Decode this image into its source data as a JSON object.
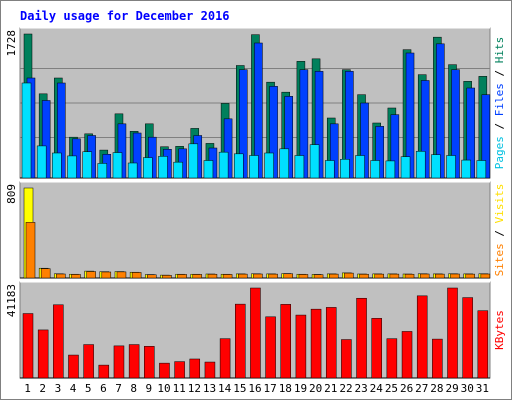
{
  "chart_data": {
    "type": "bar",
    "title": "Daily usage for December 2016",
    "days": [
      "1",
      "2",
      "3",
      "4",
      "5",
      "6",
      "7",
      "8",
      "9",
      "10",
      "11",
      "12",
      "13",
      "14",
      "15",
      "16",
      "17",
      "18",
      "19",
      "20",
      "21",
      "22",
      "23",
      "24",
      "25",
      "26",
      "27",
      "28",
      "29",
      "30",
      "31"
    ],
    "weekend_days": [
      "3",
      "4",
      "10",
      "11",
      "17",
      "18",
      "24",
      "25",
      "31"
    ],
    "colors": {
      "title": "#0000ff",
      "background": "#ffffff",
      "plot_bg": "#c0c0c0",
      "frame": "#808080",
      "gridline": "#808080",
      "hits": "#00805c",
      "files": "#0040ff",
      "pages": "#00e0ff",
      "sites": "#ff8000",
      "visits": "#ffff00",
      "kbytes": "#ff0000",
      "weekend_label": "#00805c",
      "weekday_label": "#000000"
    },
    "panels": [
      {
        "name": "hits-files-pages",
        "max_label": "1728",
        "ymax": 1728,
        "legend": [
          {
            "text": "Pages",
            "color": "#00c0e0"
          },
          {
            "text": " / ",
            "color": "#000000"
          },
          {
            "text": "Files",
            "color": "#0040ff"
          },
          {
            "text": " / ",
            "color": "#000000"
          },
          {
            "text": "Hits",
            "color": "#00805c"
          }
        ],
        "series": [
          {
            "name": "Hits",
            "color": "#00805c",
            "values": [
              1728,
              1010,
              1200,
              490,
              530,
              335,
              770,
              560,
              650,
              375,
              380,
              595,
              415,
              895,
              1350,
              1720,
              1150,
              1030,
              1400,
              1430,
              720,
              1300,
              1000,
              660,
              840,
              1540,
              1240,
              1690,
              1360,
              1160,
              1220
            ]
          },
          {
            "name": "Files",
            "color": "#0040ff",
            "values": [
              1200,
              930,
              1140,
              470,
              510,
              285,
              650,
              540,
              490,
              345,
              350,
              510,
              360,
              710,
              1300,
              1620,
              1100,
              980,
              1300,
              1280,
              650,
              1280,
              900,
              620,
              760,
              1500,
              1170,
              1610,
              1300,
              1080,
              1000
            ]
          },
          {
            "name": "Pages",
            "color": "#00e0ff",
            "values": [
              1140,
              385,
              300,
              265,
              315,
              175,
              305,
              180,
              245,
              260,
              190,
              410,
              210,
              310,
              290,
              270,
              300,
              350,
              270,
              400,
              210,
              225,
              270,
              210,
              205,
              255,
              320,
              280,
              270,
              215,
              210
            ]
          }
        ]
      },
      {
        "name": "sites-visits",
        "max_label": "809",
        "ymax": 809,
        "legend": [
          {
            "text": "Sites",
            "color": "#ff8000"
          },
          {
            "text": " / ",
            "color": "#000000"
          },
          {
            "text": "Visits",
            "color": "#ffe000"
          }
        ],
        "series": [
          {
            "name": "Visits",
            "color": "#ffff00",
            "values": [
              809,
              88,
              38,
              34,
              62,
              57,
              58,
              52,
              31,
              26,
              34,
              34,
              36,
              34,
              37,
              38,
              37,
              40,
              34,
              32,
              37,
              46,
              36,
              37,
              37,
              36,
              38,
              37,
              38,
              37,
              38
            ]
          },
          {
            "name": "Sites",
            "color": "#ff8000",
            "values": [
              500,
              84,
              36,
              32,
              58,
              54,
              55,
              50,
              29,
              24,
              32,
              32,
              34,
              32,
              35,
              36,
              35,
              38,
              32,
              30,
              35,
              44,
              34,
              35,
              35,
              34,
              36,
              35,
              36,
              35,
              36
            ]
          }
        ]
      },
      {
        "name": "kbytes",
        "max_label": "41183",
        "ymax": 41183,
        "legend": [
          {
            "text": "KBytes",
            "color": "#ff0000"
          }
        ],
        "series": [
          {
            "name": "KBytes",
            "color": "#ff0000",
            "values": [
              29500,
              22000,
              33500,
              10500,
              15300,
              5900,
              14700,
              15300,
              14500,
              6800,
              7500,
              8700,
              7300,
              18000,
              33800,
              41183,
              28000,
              33700,
              28800,
              31500,
              32300,
              17600,
              36500,
              27300,
              18000,
              21300,
              37600,
              17800,
              41183,
              36800,
              30800
            ]
          }
        ]
      }
    ]
  }
}
